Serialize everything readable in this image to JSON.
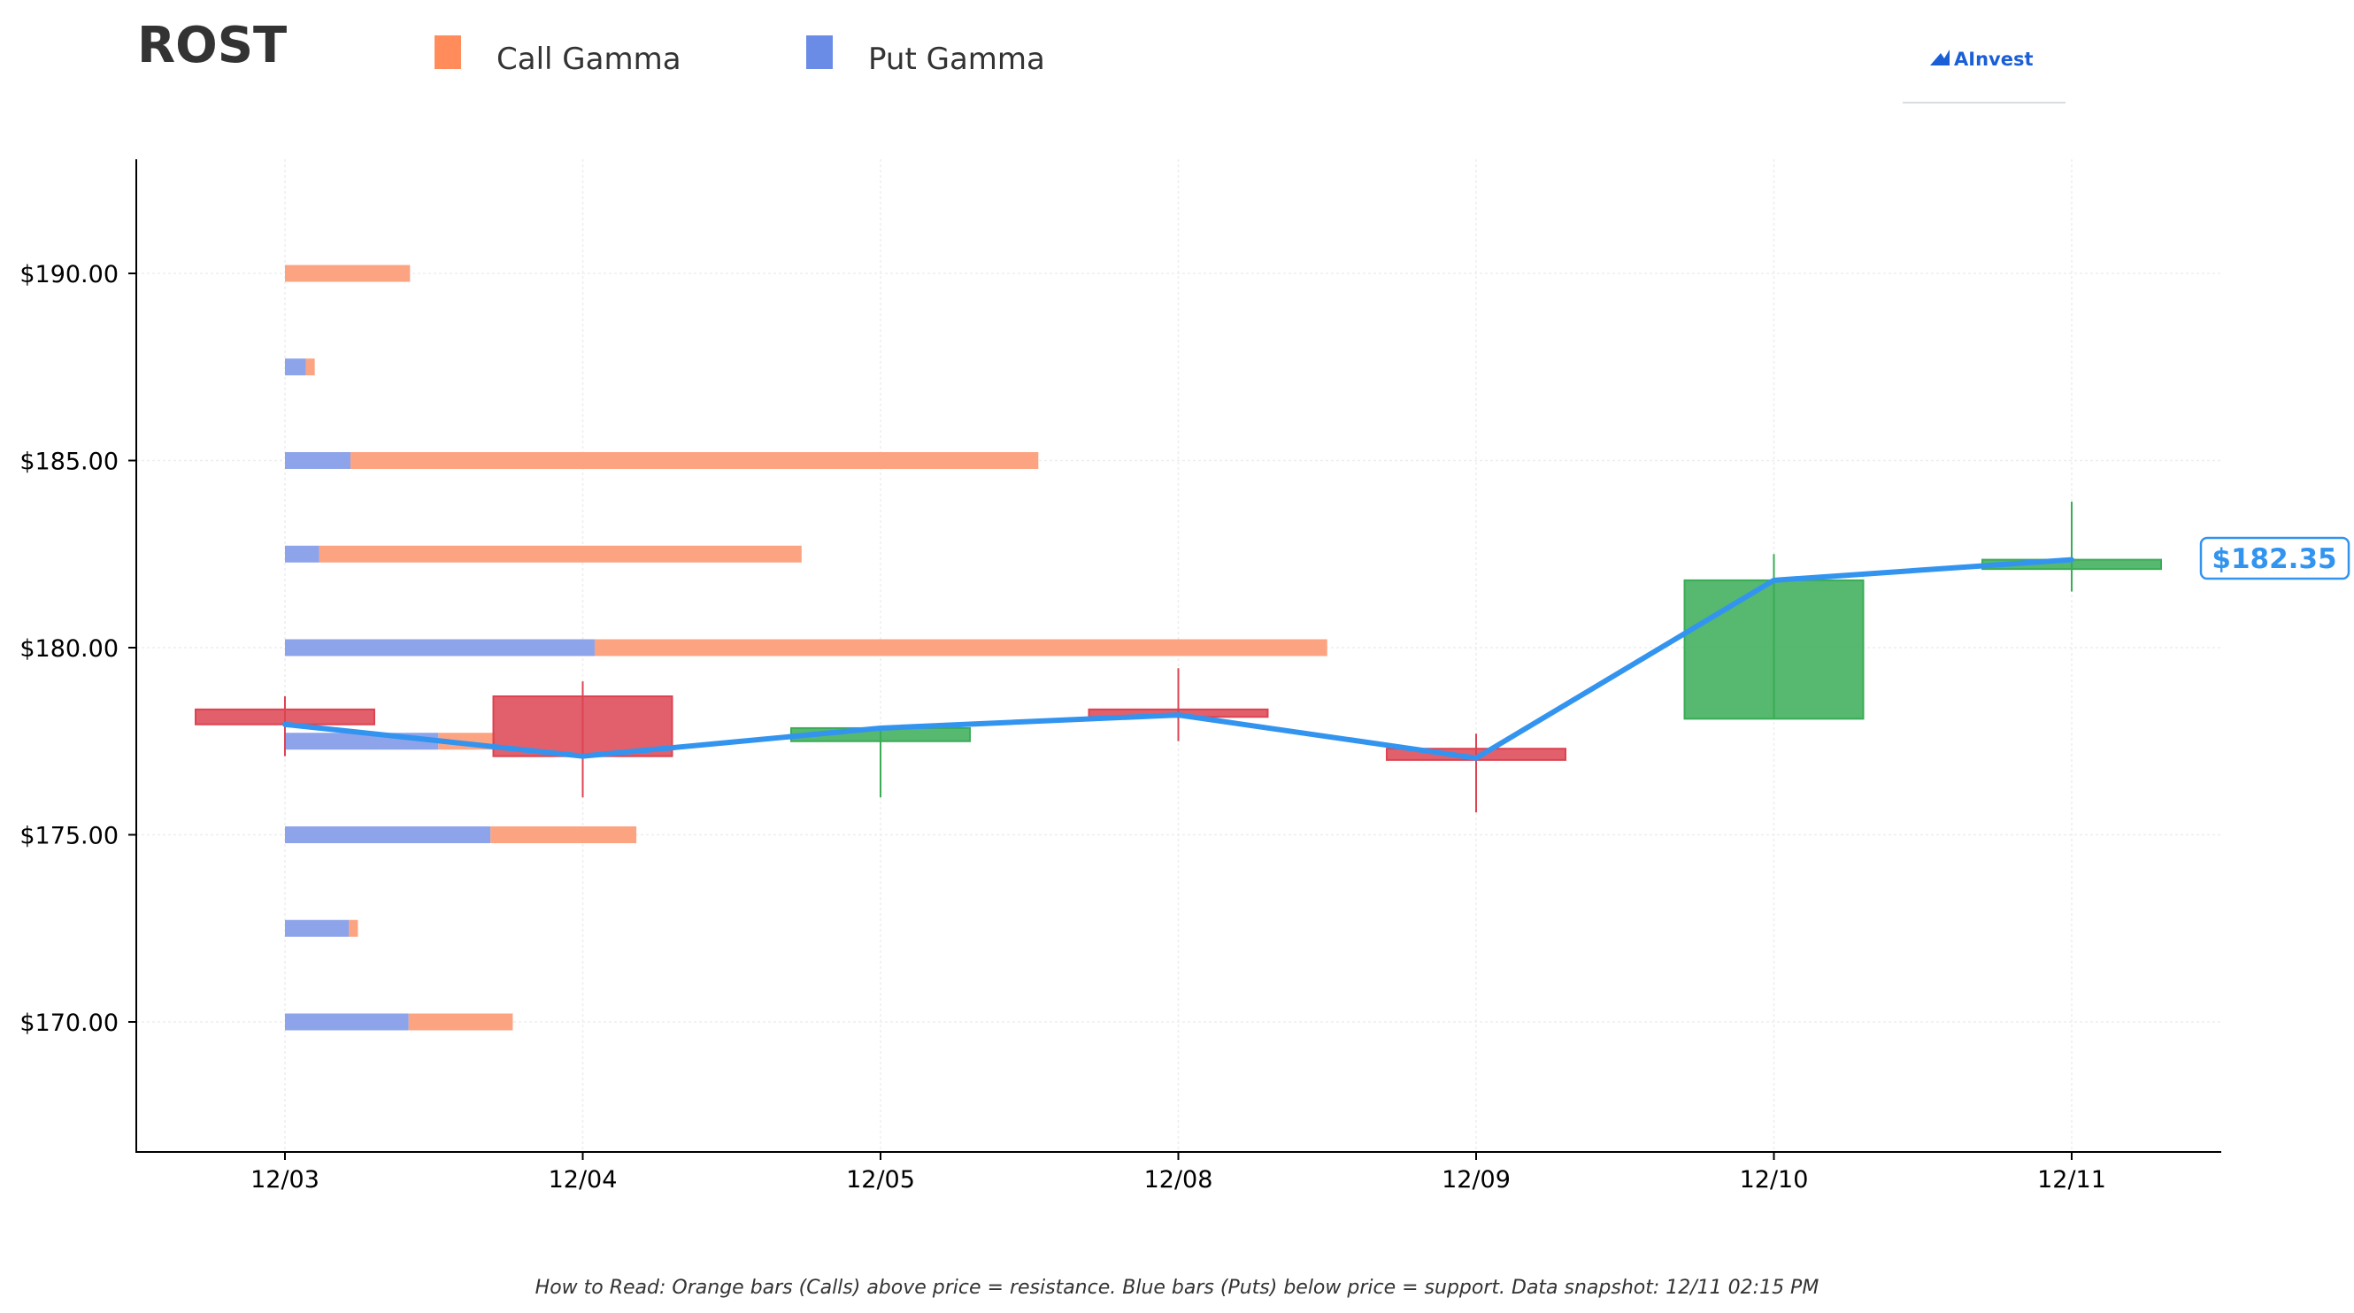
{
  "ticker": "ROST",
  "logo": {
    "text": "AInvest",
    "color": "#1a5fd6"
  },
  "legend": [
    {
      "label": "Call Gamma",
      "color": "#ff8c5a"
    },
    {
      "label": "Put Gamma",
      "color": "#6a8ce6"
    }
  ],
  "footnote": "How to Read: Orange bars (Calls) above price = resistance. Blue bars (Puts) below price = support. Data snapshot: 12/11 02:15 PM",
  "colors": {
    "call": "#fca482",
    "put": "#8ea4ea",
    "up": "#3aac56",
    "down": "#dc4452",
    "price_line": "#3394ef",
    "price_tag": "#3394ef"
  },
  "chart_data": {
    "type": "candlestick",
    "x": [
      "12/03",
      "12/04",
      "12/05",
      "12/08",
      "12/09",
      "12/10",
      "12/11"
    ],
    "ylim": [
      166.5,
      193.0
    ],
    "yticks": [
      170,
      175,
      180,
      185,
      190
    ],
    "ytick_labels": [
      "$170.00",
      "$175.00",
      "$180.00",
      "$185.00",
      "$190.00"
    ],
    "grid": true,
    "legend_position": "top",
    "candles": [
      {
        "date": "12/03",
        "open": 178.35,
        "high": 178.7,
        "low": 177.1,
        "close": 177.95
      },
      {
        "date": "12/04",
        "open": 178.7,
        "high": 179.1,
        "low": 176.0,
        "close": 177.1
      },
      {
        "date": "12/05",
        "open": 177.5,
        "high": 177.9,
        "low": 176.0,
        "close": 177.85
      },
      {
        "date": "12/08",
        "open": 178.35,
        "high": 179.45,
        "low": 177.5,
        "close": 178.15
      },
      {
        "date": "12/09",
        "open": 177.3,
        "high": 177.7,
        "low": 175.6,
        "close": 177.0
      },
      {
        "date": "12/10",
        "open": 178.1,
        "high": 182.5,
        "low": 178.1,
        "close": 181.8
      },
      {
        "date": "12/11",
        "open": 182.1,
        "high": 183.9,
        "low": 181.5,
        "close": 182.35
      }
    ],
    "price_line": {
      "dates": [
        "12/03",
        "12/04",
        "12/05",
        "12/08",
        "12/09",
        "12/10",
        "12/11"
      ],
      "values": [
        177.95,
        177.1,
        177.85,
        178.2,
        177.05,
        181.8,
        182.35
      ]
    },
    "last_price_label": "$182.35",
    "gamma_strikes": [
      170,
      172.5,
      175,
      177.5,
      180,
      182.5,
      185,
      187.5,
      190
    ],
    "gamma_series": [
      {
        "name": "Put Gamma",
        "values": [
          0.415,
          0.215,
          0.69,
          0.515,
          1.04,
          0.115,
          0.22,
          0.07,
          0.0
        ]
      },
      {
        "name": "Call Gamma",
        "values": [
          0.35,
          0.03,
          0.49,
          0.19,
          2.46,
          1.62,
          2.31,
          0.03,
          0.42
        ]
      }
    ]
  }
}
